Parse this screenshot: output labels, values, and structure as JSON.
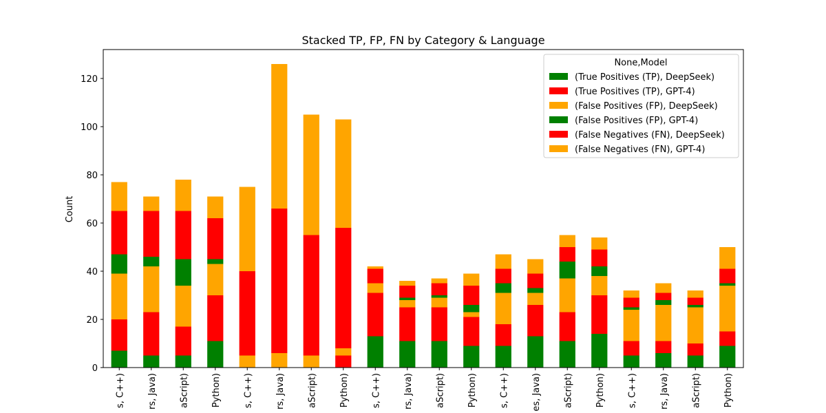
{
  "chart_data": {
    "type": "bar",
    "stacked": true,
    "title": "Stacked TP, FP, FN by Category & Language",
    "xlabel": "",
    "ylabel": "Count",
    "ylim": [
      0,
      132
    ],
    "yticks": [
      0,
      20,
      40,
      60,
      80,
      100,
      120
    ],
    "legend_title": "None,Model",
    "legend_position": "top-right",
    "categories": [
      "s, C++)",
      "rs, Java)",
      "aScript)",
      "Python)",
      "s, C++)",
      "rs, Java)",
      "aScript)",
      "Python)",
      "s, C++)",
      "rs, Java)",
      "aScript)",
      "Python)",
      "s, C++)",
      "es, Java)",
      "aScript)",
      "Python)",
      "s, C++)",
      "rs, Java)",
      "aScript)",
      "Python)"
    ],
    "series": [
      {
        "name": "(True Positives (TP), DeepSeek)",
        "color": "#008000",
        "values": [
          7,
          5,
          5,
          11,
          0,
          0,
          0,
          0,
          13,
          11,
          11,
          9,
          9,
          13,
          11,
          14,
          5,
          6,
          5,
          9
        ]
      },
      {
        "name": "(True Positives (TP), GPT-4)",
        "color": "#ff0000",
        "values": [
          13,
          18,
          12,
          19,
          0,
          0,
          0,
          5,
          18,
          14,
          14,
          12,
          9,
          13,
          12,
          16,
          6,
          5,
          5,
          6
        ]
      },
      {
        "name": "(False Positives (FP), DeepSeek)",
        "color": "#ffa500",
        "values": [
          19,
          19,
          17,
          13,
          5,
          6,
          5,
          3,
          4,
          3,
          4,
          2,
          13,
          5,
          14,
          8,
          13,
          15,
          15,
          19
        ]
      },
      {
        "name": "(False Positives (FP), GPT-4)",
        "color": "#008000",
        "values": [
          8,
          4,
          11,
          2,
          0,
          0,
          0,
          0,
          0,
          1,
          1,
          3,
          4,
          2,
          7,
          4,
          1,
          2,
          1,
          1
        ]
      },
      {
        "name": "(False Negatives (FN), DeepSeek)",
        "color": "#ff0000",
        "values": [
          18,
          19,
          20,
          17,
          35,
          60,
          50,
          50,
          6,
          5,
          5,
          8,
          6,
          6,
          6,
          7,
          4,
          3,
          3,
          6
        ]
      },
      {
        "name": "(False Negatives (FN), GPT-4)",
        "color": "#ffa500",
        "values": [
          12,
          6,
          13,
          9,
          35,
          60,
          50,
          45,
          1,
          2,
          2,
          5,
          6,
          6,
          5,
          5,
          3,
          4,
          3,
          9
        ]
      }
    ]
  }
}
